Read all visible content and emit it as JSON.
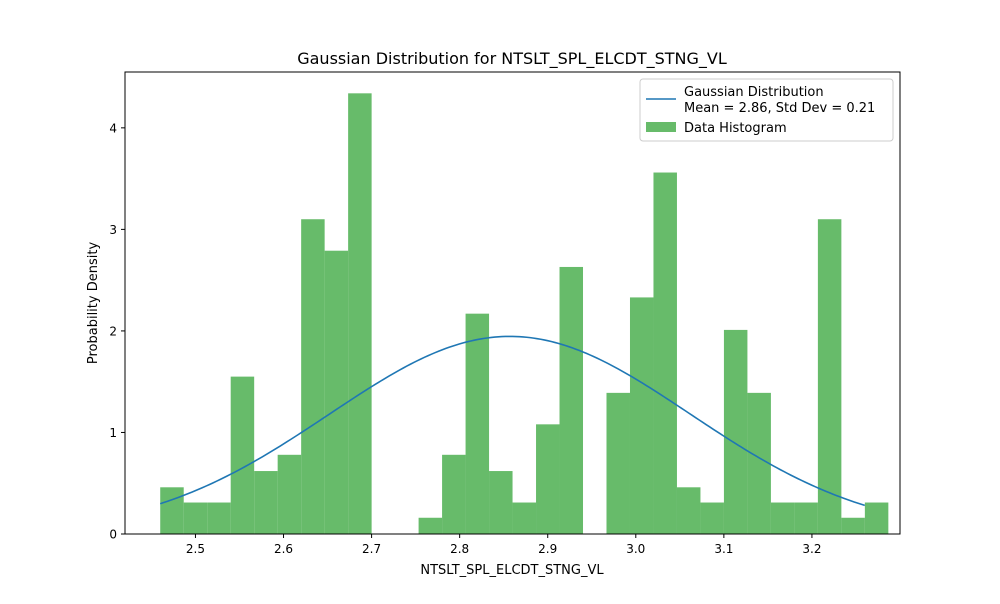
{
  "chart_data": {
    "type": "bar",
    "title": "Gaussian Distribution for NTSLT_SPL_ELCDT_STNG_VL",
    "xlabel": "NTSLT_SPL_ELCDT_STNG_VL",
    "ylabel": "Probability Density",
    "xlim": [
      2.42,
      3.3
    ],
    "ylim": [
      0,
      4.55
    ],
    "xticks": [
      2.5,
      2.6,
      2.7,
      2.8,
      2.9,
      3.0,
      3.1,
      3.2
    ],
    "xtick_labels": [
      "2.5",
      "2.6",
      "2.7",
      "2.8",
      "2.9",
      "3.0",
      "3.1",
      "3.2"
    ],
    "yticks": [
      0,
      1,
      2,
      3,
      4
    ],
    "ytick_labels": [
      "0",
      "1",
      "2",
      "3",
      "4"
    ],
    "grid": false,
    "legend_position": "top-right",
    "histogram": {
      "name": "Data Histogram",
      "color": "#4caf50",
      "opacity": 0.85,
      "bin_start": 2.46,
      "bin_width": 0.02667,
      "values": [
        0.46,
        0.31,
        0.31,
        1.55,
        0.62,
        0.78,
        3.1,
        2.79,
        4.34,
        0,
        0,
        0.16,
        0.78,
        2.17,
        0.62,
        0.31,
        1.08,
        2.63,
        0,
        1.39,
        2.33,
        3.56,
        0.46,
        0.31,
        2.01,
        1.39,
        0.31,
        0.31,
        3.1,
        0.16,
        0.31
      ]
    },
    "gaussian": {
      "name": "Gaussian Distribution",
      "label_line2": "Mean = 2.86, Std Dev = 0.21",
      "color": "#1f77b4",
      "mean": 2.857,
      "std": 0.205,
      "x_range": [
        2.46,
        3.26
      ]
    }
  }
}
